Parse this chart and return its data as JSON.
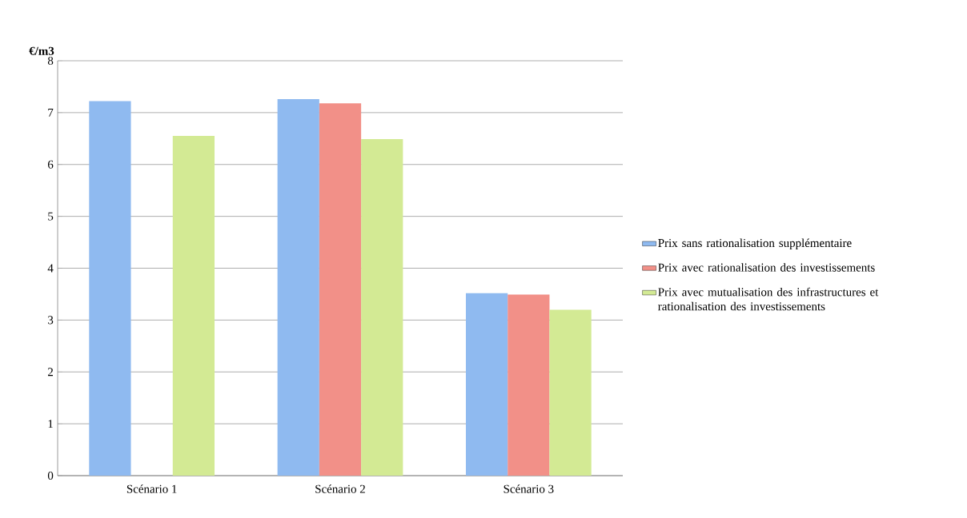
{
  "chart_data": {
    "type": "bar",
    "ylabel": "€/m3",
    "categories": [
      "Scénario 1",
      "Scénario 2",
      "Scénario 3"
    ],
    "series": [
      {
        "name": "Prix sans rationalisation supplémentaire",
        "color": "#8fbaf0",
        "values": [
          7.22,
          7.26,
          3.52
        ]
      },
      {
        "name": "Prix avec rationalisation des investissements",
        "color": "#f29088",
        "values": [
          null,
          7.18,
          3.49
        ]
      },
      {
        "name": "Prix avec mutualisation des infrastructures et rationalisation des investissements",
        "color": "#d3ea94",
        "values": [
          6.55,
          6.49,
          3.2
        ]
      }
    ],
    "ylim": [
      0,
      8
    ],
    "yticks": [
      0,
      1,
      2,
      3,
      4,
      5,
      6,
      7,
      8
    ],
    "grid": "y",
    "legend": "right"
  }
}
